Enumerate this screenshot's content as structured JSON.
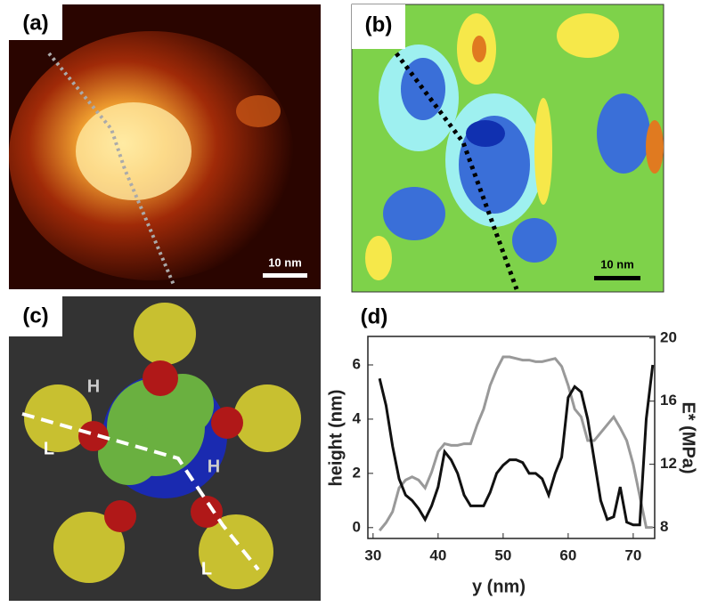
{
  "panels": [
    {
      "label": "(a)",
      "scale_bar": "10 nm"
    },
    {
      "label": "(b)",
      "scale_bar": "10 nm"
    },
    {
      "label": "(c)",
      "annotations": [
        "H",
        "H",
        "L",
        "L"
      ]
    }
  ],
  "chart_data": {
    "type": "line",
    "label": "(d)",
    "x_label": "y (nm)",
    "y_label": "height (nm)",
    "y2_label": "E* (MPa)",
    "x": [
      31,
      32,
      33,
      34,
      35,
      36,
      37,
      38,
      39,
      40,
      41,
      42,
      43,
      44,
      45,
      46,
      47,
      48,
      49,
      50,
      51,
      52,
      53,
      54,
      55,
      56,
      57,
      58,
      59,
      60,
      61,
      62,
      63,
      64,
      65,
      66,
      67,
      68,
      69,
      70,
      71,
      72,
      73
    ],
    "series": [
      {
        "color": "#111111",
        "values": [
          5.5,
          4.5,
          3.0,
          1.8,
          1.2,
          1.0,
          0.7,
          0.3,
          0.8,
          1.5,
          2.8,
          2.5,
          2.0,
          1.2,
          0.8,
          0.8,
          0.8,
          1.3,
          2.0,
          2.3,
          2.5,
          2.5,
          2.4,
          2.0,
          2.0,
          1.8,
          1.2,
          2.0,
          2.6,
          4.8,
          5.2,
          5.0,
          4.0,
          2.5,
          1.0,
          0.3,
          0.4,
          1.5,
          0.2,
          0.1,
          0.1,
          4.0,
          6.0
        ]
      },
      {
        "color": "#999999",
        "axis": "y2",
        "values": [
          7.8,
          8.3,
          9,
          10.5,
          11,
          11.2,
          11,
          10.5,
          11.5,
          12.8,
          13.3,
          13.2,
          13.2,
          13.3,
          13.3,
          14.5,
          15.5,
          17,
          18,
          18.8,
          18.8,
          18.7,
          18.6,
          18.6,
          18.5,
          18.5,
          18.6,
          18.7,
          18.2,
          17,
          15.5,
          15,
          13.5,
          13.5,
          14,
          14.5,
          15,
          14.3,
          13.5,
          12,
          10,
          8,
          8
        ]
      }
    ],
    "xlim": [
      29.2,
      73.3
    ],
    "xticks": [
      30,
      40,
      50,
      60,
      70
    ],
    "ylim": [
      -0.4,
      7.05
    ],
    "yticks": [
      0,
      2,
      4,
      6
    ],
    "y2lim": [
      7.3,
      20.1
    ],
    "y2ticks": [
      8,
      12,
      16,
      20
    ]
  }
}
